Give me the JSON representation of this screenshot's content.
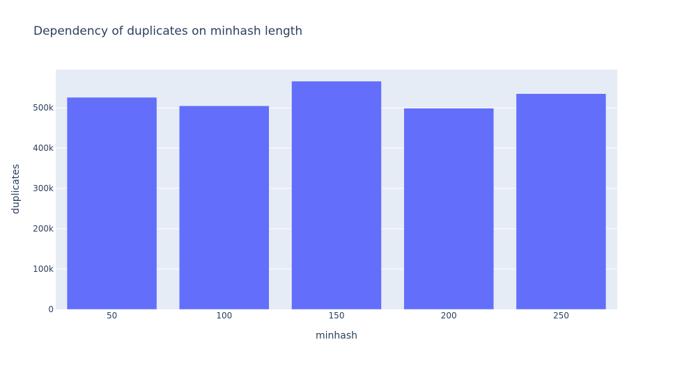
{
  "chart_data": {
    "type": "bar",
    "title": "Dependency of duplicates on minhash length",
    "xlabel": "minhash",
    "ylabel": "duplicates",
    "categories": [
      "50",
      "100",
      "150",
      "200",
      "250"
    ],
    "values": [
      526000,
      505000,
      566000,
      499000,
      535000
    ],
    "ylim": [
      0,
      595000
    ],
    "yticks": [
      0,
      100000,
      200000,
      300000,
      400000,
      500000
    ],
    "ytick_labels": [
      "0",
      "100k",
      "200k",
      "300k",
      "400k",
      "500k"
    ],
    "grid": true,
    "colors": {
      "bar": "#636efa",
      "plot_bg": "#e5ecf6",
      "paper_bg": "#ffffff",
      "grid": "#ffffff",
      "text": "#2a3f5f"
    }
  }
}
